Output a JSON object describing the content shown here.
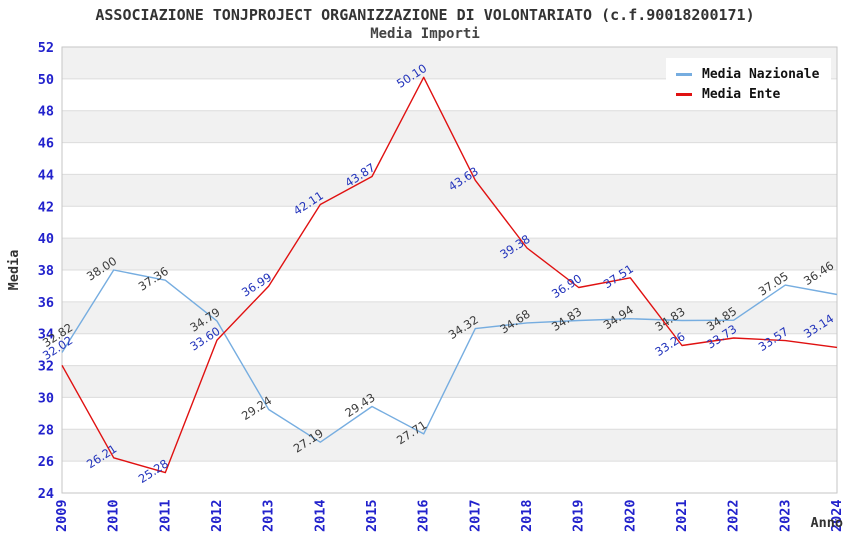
{
  "header": {
    "title": "ASSOCIAZIONE TONJPROJECT ORGANIZZAZIONE DI VOLONTARIATO (c.f.90018200171)",
    "subtitle": "Media Importi"
  },
  "chart_data": {
    "type": "line",
    "title": "ASSOCIAZIONE TONJPROJECT ORGANIZZAZIONE DI VOLONTARIATO (c.f.90018200171)",
    "subtitle": "Media Importi",
    "xlabel": "Anno",
    "ylabel": "Media",
    "categories": [
      "2009",
      "2010",
      "2011",
      "2012",
      "2013",
      "2014",
      "2015",
      "2016",
      "2017",
      "2018",
      "2019",
      "2020",
      "2021",
      "2022",
      "2023",
      "2024"
    ],
    "series": [
      {
        "name": "Media Nazionale",
        "color": "#76ade0",
        "label_color": "#3a3a3a",
        "values": [
          32.82,
          38.0,
          37.36,
          34.79,
          29.24,
          27.19,
          29.43,
          27.71,
          34.32,
          34.68,
          34.83,
          34.94,
          34.83,
          34.85,
          37.05,
          36.46
        ]
      },
      {
        "name": "Media Ente",
        "color": "#e01111",
        "label_color": "#2233bb",
        "values": [
          32.02,
          26.21,
          25.28,
          33.6,
          36.99,
          42.11,
          43.87,
          50.1,
          43.63,
          39.38,
          36.9,
          37.51,
          33.26,
          33.73,
          33.57,
          33.14
        ]
      }
    ],
    "ylim": [
      24,
      52
    ],
    "ytick_step": 2,
    "grid": "horizontal-bands",
    "legend_position": "top-right",
    "colors": {
      "tick_label": "#2222cc",
      "axis_title": "#333333",
      "band": "#f1f1f1",
      "gridline": "#dcdcdc",
      "plot_border": "#c6c6c6"
    }
  }
}
